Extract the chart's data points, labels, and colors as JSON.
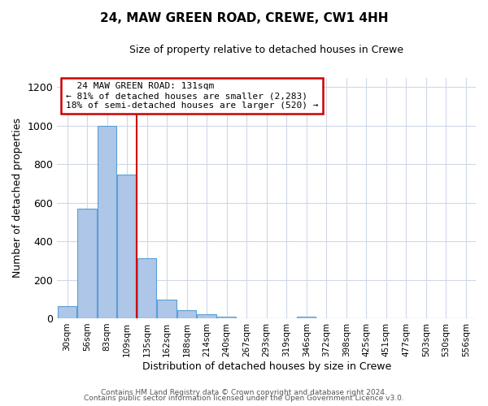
{
  "title": "24, MAW GREEN ROAD, CREWE, CW1 4HH",
  "subtitle": "Size of property relative to detached houses in Crewe",
  "xlabel": "Distribution of detached houses by size in Crewe",
  "ylabel": "Number of detached properties",
  "bar_labels": [
    "30sqm",
    "56sqm",
    "83sqm",
    "109sqm",
    "135sqm",
    "162sqm",
    "188sqm",
    "214sqm",
    "240sqm",
    "267sqm",
    "293sqm",
    "319sqm",
    "346sqm",
    "372sqm",
    "398sqm",
    "425sqm",
    "451sqm",
    "477sqm",
    "503sqm",
    "530sqm",
    "556sqm"
  ],
  "bar_values": [
    65,
    570,
    1000,
    745,
    310,
    95,
    40,
    20,
    10,
    0,
    0,
    0,
    10,
    0,
    0,
    0,
    0,
    0,
    0,
    0,
    0
  ],
  "bar_color": "#aec6e8",
  "bar_edgecolor": "#5a9fd4",
  "property_line_label": "24 MAW GREEN ROAD: 131sqm",
  "annotation_line1": "← 81% of detached houses are smaller (2,283)",
  "annotation_line2": "18% of semi-detached houses are larger (520) →",
  "annotation_box_edgecolor": "#cc0000",
  "property_line_color": "#cc0000",
  "property_line_x": 3.5,
  "ylim": [
    0,
    1250
  ],
  "yticks": [
    0,
    200,
    400,
    600,
    800,
    1000,
    1200
  ],
  "footer1": "Contains HM Land Registry data © Crown copyright and database right 2024.",
  "footer2": "Contains public sector information licensed under the Open Government Licence v3.0.",
  "background_color": "#ffffff",
  "grid_color": "#d0d8e8"
}
